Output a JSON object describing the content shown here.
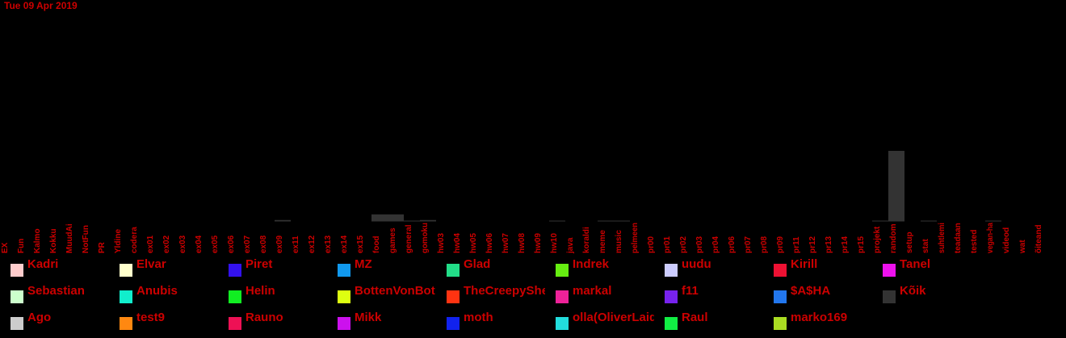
{
  "date": "Tue 09 Apr 2019",
  "chart_data": {
    "type": "bar",
    "title": "",
    "xlabel": "",
    "ylabel": "",
    "ylim": [
      0,
      100
    ],
    "bar_color": "#333333",
    "categories": [
      "EX",
      "Fun",
      "Kalmo",
      "Kokku",
      "MuudAi",
      "NotFun",
      "PR",
      "Yldine",
      "codera",
      "ex01",
      "ex02",
      "ex03",
      "ex04",
      "ex05",
      "ex06",
      "ex07",
      "ex08",
      "ex09",
      "ex11",
      "ex12",
      "ex13",
      "ex14",
      "ex15",
      "food",
      "games",
      "general",
      "gomoku",
      "hw03",
      "hw04",
      "hw05",
      "hw06",
      "hw07",
      "hw08",
      "hw09",
      "hw10",
      "java",
      "koraldi",
      "meme",
      "music",
      "pelmeen",
      "pr00",
      "pr01",
      "pr02",
      "pr03",
      "pr04",
      "pr06",
      "pr07",
      "pr08",
      "pr09",
      "pr11",
      "pr12",
      "pr13",
      "pr14",
      "pr15",
      "projekt",
      "random",
      "setup",
      "stat",
      "suhtlemi",
      "teadaan",
      "tested",
      "vegan-ha",
      "videod",
      "wat",
      "õiteand"
    ],
    "values": [
      0,
      0,
      0,
      0,
      0,
      0,
      0,
      0,
      0,
      0,
      0,
      0,
      0,
      0,
      0,
      0,
      0,
      2,
      0,
      0,
      0,
      0,
      0,
      10,
      10,
      1,
      2,
      0,
      0,
      0,
      0,
      0,
      0,
      0,
      1,
      0,
      0,
      1,
      1,
      0,
      0,
      0,
      0,
      0,
      0,
      0,
      0,
      0,
      0,
      0,
      0,
      0,
      0,
      0,
      1,
      100,
      0,
      1,
      0,
      0,
      0,
      1,
      0,
      0,
      0
    ]
  },
  "legend": [
    {
      "name": "Kadri",
      "color": "#ffcccc"
    },
    {
      "name": "Elvar",
      "color": "#ffffcc"
    },
    {
      "name": "Piret",
      "color": "#3311ee"
    },
    {
      "name": "MZ",
      "color": "#1199ee"
    },
    {
      "name": "Glad",
      "color": "#22dd88"
    },
    {
      "name": "Indrek",
      "color": "#66ee11"
    },
    {
      "name": "uudu",
      "color": "#ccccff"
    },
    {
      "name": "Kirill",
      "color": "#ee1133"
    },
    {
      "name": "Tanel",
      "color": "#ee11ee"
    },
    {
      "name": "Sebastian",
      "color": "#ccffcc"
    },
    {
      "name": "Anubis",
      "color": "#11eecc"
    },
    {
      "name": "Helin",
      "color": "#11ee22"
    },
    {
      "name": "BottenVonBot",
      "color": "#ddff11"
    },
    {
      "name": "TheCreepyShe",
      "color": "#ff3311"
    },
    {
      "name": "markal",
      "color": "#ee2299"
    },
    {
      "name": "f11",
      "color": "#7722ee"
    },
    {
      "name": "$A$HA",
      "color": "#2277ee"
    },
    {
      "name": "Kõik",
      "color": "#333333"
    },
    {
      "name": "Ago",
      "color": "#cccccc"
    },
    {
      "name": "test9",
      "color": "#ff8811"
    },
    {
      "name": "Rauno",
      "color": "#ee1155"
    },
    {
      "name": "Mikk",
      "color": "#cc11ee"
    },
    {
      "name": "moth",
      "color": "#1122ee"
    },
    {
      "name": "olla(OliverLaid",
      "color": "#22dddd"
    },
    {
      "name": "Raul",
      "color": "#11ee44"
    },
    {
      "name": "marko169",
      "color": "#aadd22"
    }
  ]
}
